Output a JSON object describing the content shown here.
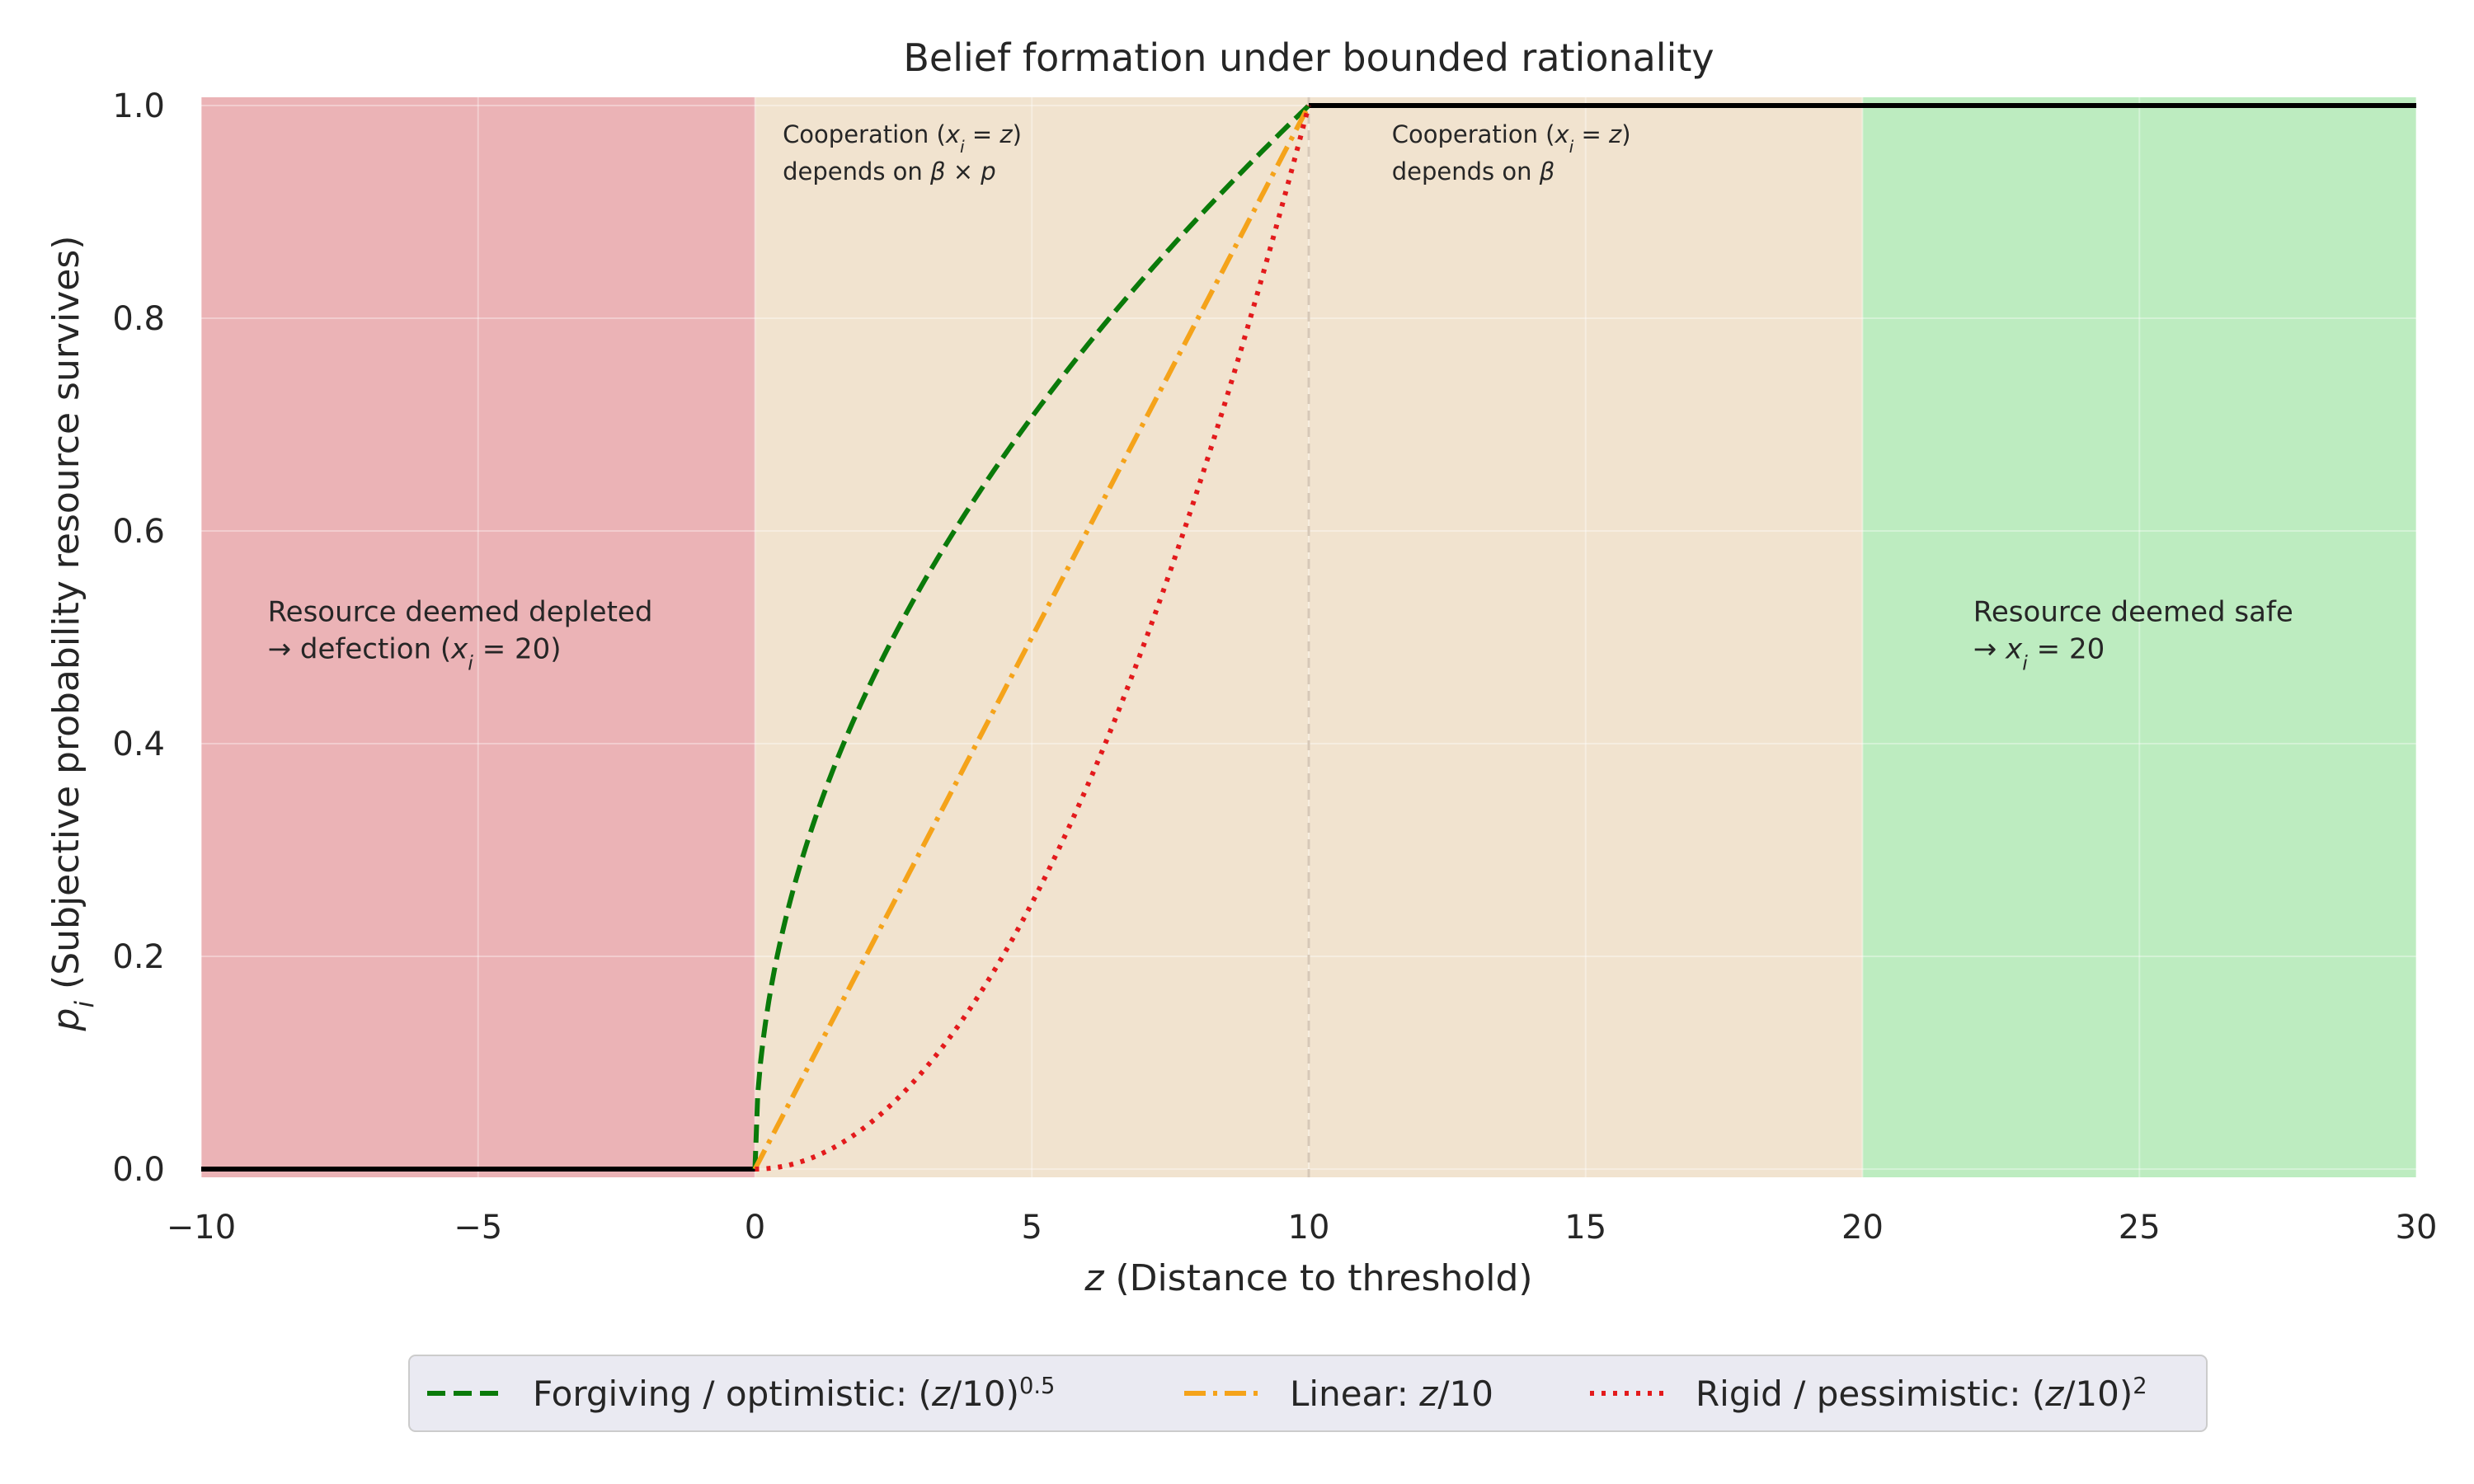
{
  "chart_data": {
    "type": "line",
    "title": "Belief formation under bounded rationality",
    "xlabel": "z (Distance to threshold)",
    "ylabel": "p_i (Subjective probability resource survives)",
    "xlim": [
      -10,
      30
    ],
    "ylim": [
      0,
      1
    ],
    "x_ticks": [
      -10,
      -5,
      0,
      5,
      10,
      15,
      20,
      25,
      30
    ],
    "x_tick_labels": [
      "−10",
      "−5",
      "0",
      "5",
      "10",
      "15",
      "20",
      "25",
      "30"
    ],
    "y_ticks": [
      0.0,
      0.2,
      0.4,
      0.6,
      0.8,
      1.0
    ],
    "y_tick_labels": [
      "0.0",
      "0.2",
      "0.4",
      "0.6",
      "0.8",
      "1.0"
    ],
    "grid": true,
    "legend_placement": "bottom-center (below axes)",
    "regions": [
      {
        "x_start": -10,
        "x_end": 0,
        "color": "#ebb3b6",
        "lines": [
          "Resource deemed depleted",
          "→ defection (x_i = 20)"
        ]
      },
      {
        "x_start": 0,
        "x_end": 10,
        "color": "#f1e3cf",
        "lines": [
          "Cooperation (x_i = z)",
          "depends on β × p"
        ]
      },
      {
        "x_start": 10,
        "x_end": 20,
        "color": "#f1e3cf",
        "lines": [
          "Cooperation (x_i = z)",
          "depends on β"
        ]
      },
      {
        "x_start": 20,
        "x_end": 30,
        "color": "#bdecc0",
        "lines": [
          "Resource deemed safe",
          "→ x_i = 20"
        ]
      }
    ],
    "reference_line": {
      "x": 10,
      "style": "dashed",
      "color": "#d6c8b8"
    },
    "step_segments": [
      {
        "x": [
          -10,
          0
        ],
        "y": [
          0,
          0
        ],
        "color": "#000000"
      },
      {
        "x": [
          10,
          30
        ],
        "y": [
          1,
          1
        ],
        "color": "#000000"
      }
    ],
    "series": [
      {
        "name": "Forgiving / optimistic: (z/10)^0.5",
        "color": "#0a7a0a",
        "dash": "dashed",
        "exponent": 0.5,
        "x": [
          0,
          1,
          2,
          3,
          4,
          5,
          6,
          7,
          8,
          9,
          10
        ],
        "y": [
          0.0,
          0.316,
          0.447,
          0.548,
          0.632,
          0.707,
          0.775,
          0.837,
          0.894,
          0.949,
          1.0
        ]
      },
      {
        "name": "Linear: z/10",
        "color": "#f5a31a",
        "dash": "dashdot",
        "exponent": 1,
        "x": [
          0,
          1,
          2,
          3,
          4,
          5,
          6,
          7,
          8,
          9,
          10
        ],
        "y": [
          0.0,
          0.1,
          0.2,
          0.3,
          0.4,
          0.5,
          0.6,
          0.7,
          0.8,
          0.9,
          1.0
        ]
      },
      {
        "name": "Rigid / pessimistic: (z/10)^2",
        "color": "#e31a1c",
        "dash": "dotted",
        "exponent": 2,
        "x": [
          0,
          1,
          2,
          3,
          4,
          5,
          6,
          7,
          8,
          9,
          10
        ],
        "y": [
          0.0,
          0.01,
          0.04,
          0.09,
          0.16,
          0.25,
          0.36,
          0.49,
          0.64,
          0.81,
          1.0
        ]
      }
    ],
    "legend": [
      {
        "prefix": "Forgiving / optimistic: (",
        "var": "z",
        "suffix": "/10)",
        "sup": "0.5"
      },
      {
        "prefix": "Linear: ",
        "var": "z",
        "suffix": "/10",
        "sup": ""
      },
      {
        "prefix": "Rigid / pessimistic: (",
        "var": "z",
        "suffix": "/10)",
        "sup": "2"
      }
    ]
  }
}
